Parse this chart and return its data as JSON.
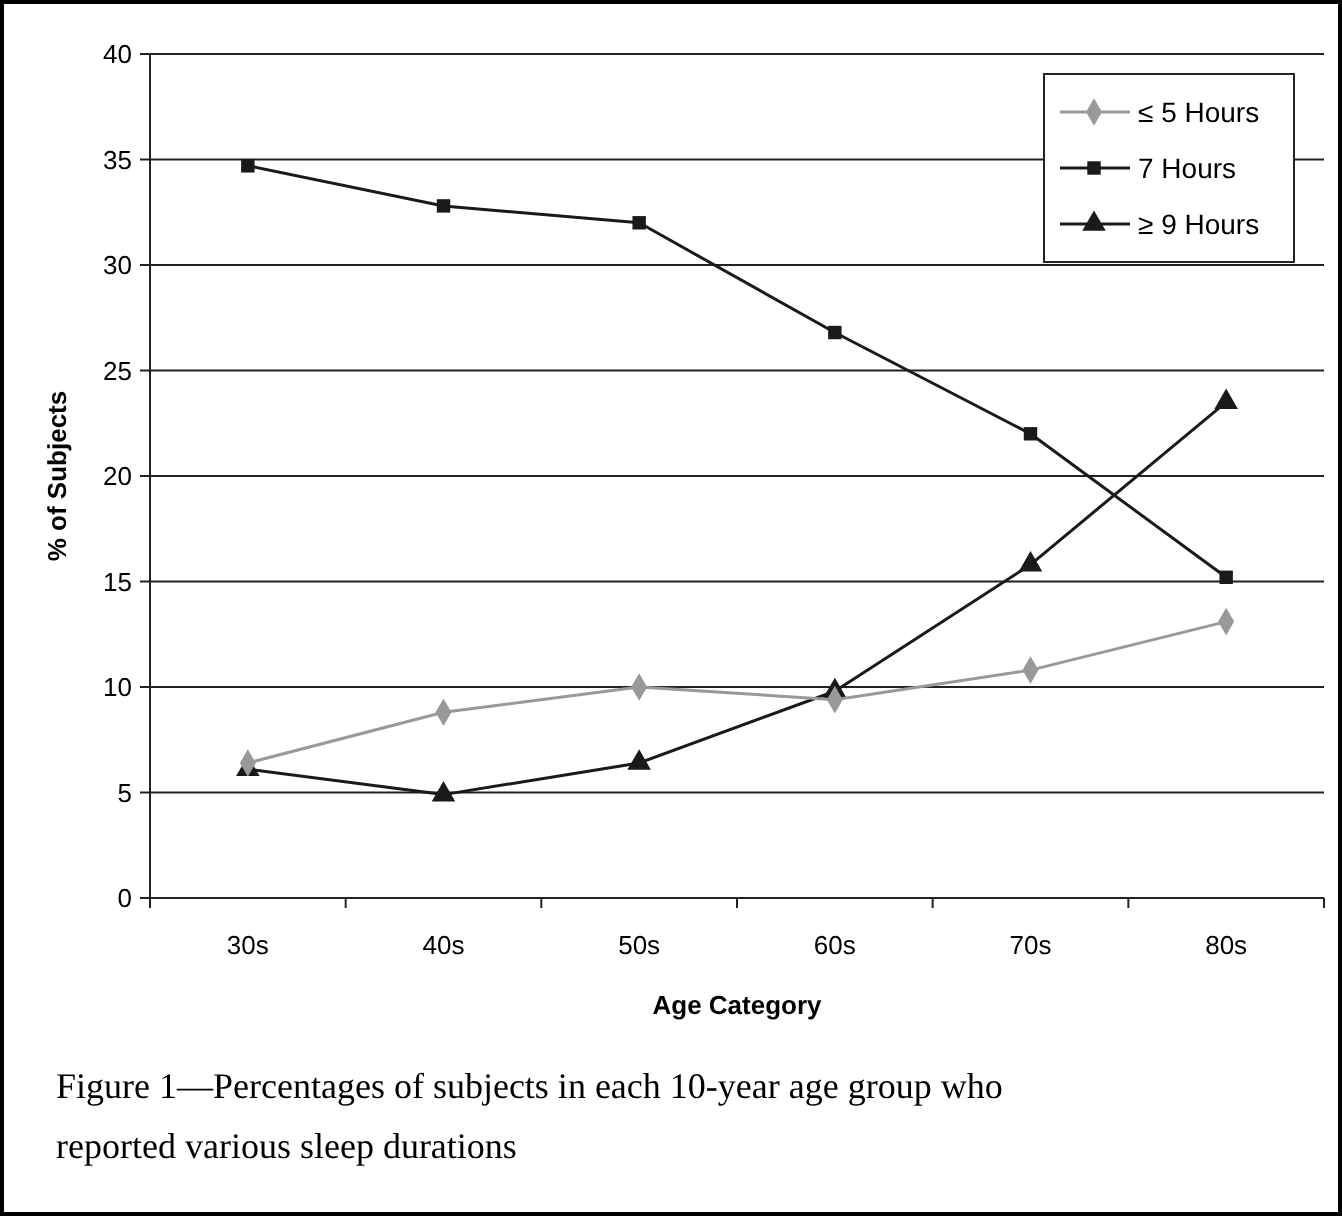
{
  "chart_data": {
    "type": "line",
    "xlabel": "Age Category",
    "ylabel": "% of Subjects",
    "categories": [
      "30s",
      "40s",
      "50s",
      "60s",
      "70s",
      "80s"
    ],
    "series": [
      {
        "name": "≤ 5 Hours",
        "color": "#999999",
        "marker": "diamond",
        "values": [
          6.4,
          8.8,
          10.0,
          9.4,
          10.8,
          13.1
        ]
      },
      {
        "name": "7 Hours",
        "color": "#1a1a1a",
        "marker": "square",
        "values": [
          34.7,
          32.8,
          32.0,
          26.8,
          22.0,
          15.2
        ]
      },
      {
        "name": "≥ 9 Hours",
        "color": "#1a1a1a",
        "marker": "triangle",
        "values": [
          6.1,
          4.9,
          6.4,
          9.8,
          15.8,
          23.5
        ]
      }
    ],
    "ylim": [
      0,
      40
    ],
    "yticks": [
      0,
      5,
      10,
      15,
      20,
      25,
      30,
      35,
      40
    ],
    "grid": "y",
    "legend": "top right",
    "line_style": "solid",
    "annotations": [
      "Figure 1—Percentages of subjects in each 10-year age group who reported various sleep durations"
    ]
  }
}
